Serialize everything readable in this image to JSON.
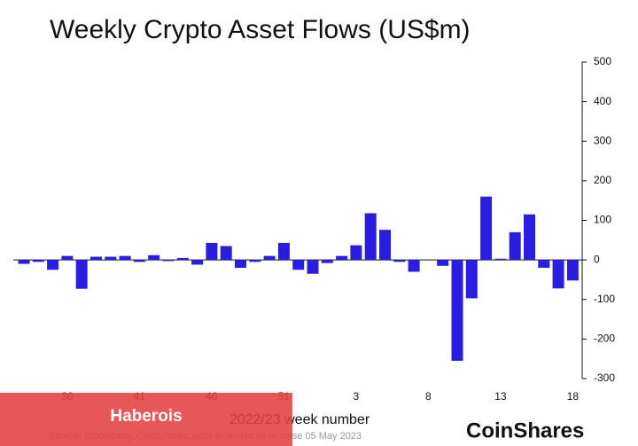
{
  "chart_data": {
    "type": "bar",
    "title": "Weekly Crypto Asset Flows (US$m)",
    "x_label": "2022/23 week number",
    "source": "Source: Bloomberg, CoinShares, data available as of close 05 May 2023",
    "brand": "CoinShares",
    "overlay_label": "Haberois",
    "categories": [
      null,
      null,
      null,
      "36",
      null,
      null,
      null,
      null,
      "41",
      null,
      null,
      null,
      null,
      "46",
      null,
      null,
      null,
      null,
      "51",
      null,
      null,
      null,
      null,
      "3",
      null,
      null,
      null,
      null,
      "8",
      null,
      null,
      null,
      null,
      "13",
      null,
      null,
      null,
      null,
      "18"
    ],
    "values": [
      -10,
      -5,
      -25,
      10,
      -73,
      8,
      8,
      10,
      -5,
      12,
      -3,
      5,
      -12,
      43,
      35,
      -20,
      -5,
      10,
      43,
      -25,
      -35,
      -8,
      10,
      37,
      118,
      76,
      -5,
      -30,
      0,
      -15,
      -255,
      -97,
      160,
      3,
      70,
      115,
      -20,
      -72,
      -52
    ],
    "color": "#2b1de0",
    "ylim": [
      -300,
      500
    ],
    "yticks": [
      500,
      400,
      300,
      200,
      100,
      0,
      -100,
      -200,
      -300
    ],
    "y_axis_side": "right",
    "grid": false
  }
}
